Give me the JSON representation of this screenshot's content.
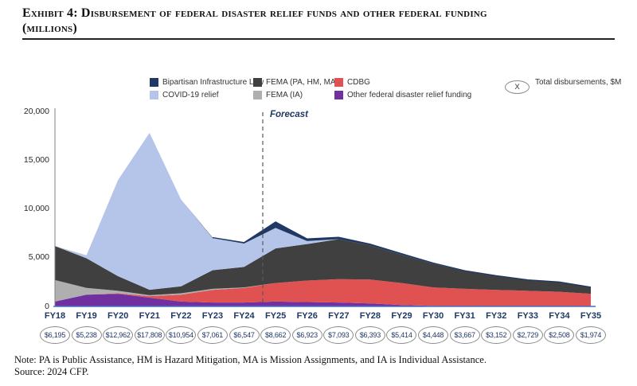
{
  "title_line1": "Exhibit 4: Disbursement of federal disaster relief funds and other federal funding",
  "title_line2": "(millions)",
  "legend": {
    "items": [
      {
        "id": "bil",
        "label": "Bipartisan Infrastructure Law",
        "color": "#1F3864"
      },
      {
        "id": "fema-pa",
        "label": "FEMA (PA, HM, MA)",
        "color": "#404040"
      },
      {
        "id": "cdbg",
        "label": "CDBG",
        "color": "#E05252"
      },
      {
        "id": "covid",
        "label": "COVID-19 relief",
        "color": "#B5C5EA"
      },
      {
        "id": "fema-ia",
        "label": "FEMA (IA)",
        "color": "#AFAFAF"
      },
      {
        "id": "other",
        "label": "Other federal disaster relief funding",
        "color": "#7030A0"
      }
    ],
    "total_marker": {
      "symbol": "X",
      "label": "Total disbursements, $M"
    }
  },
  "colors": {
    "navy_text": "#1F3864",
    "axis_x": "#4472C4",
    "axis_y": "#808080",
    "forecast_line": "#595959",
    "ellipse_border": "#8A8A8A"
  },
  "chart_data": {
    "type": "area",
    "stacked": true,
    "categories": [
      "FY18",
      "FY19",
      "FY20",
      "FY21",
      "FY22",
      "FY23",
      "FY24",
      "FY25",
      "FY26",
      "FY27",
      "FY28",
      "FY29",
      "FY30",
      "FY31",
      "FY32",
      "FY33",
      "FY34",
      "FY35"
    ],
    "series": [
      {
        "id": "other",
        "name": "Other federal disaster relief funding",
        "color": "#7030A0",
        "values": [
          500,
          1200,
          1300,
          900,
          500,
          400,
          400,
          500,
          450,
          400,
          300,
          150,
          50,
          0,
          0,
          0,
          0,
          0
        ]
      },
      {
        "id": "cdbg",
        "name": "CDBG",
        "color": "#E05252",
        "values": [
          0,
          0,
          50,
          150,
          700,
          1300,
          1500,
          1900,
          2200,
          2400,
          2450,
          2250,
          1900,
          1800,
          1700,
          1600,
          1500,
          1300
        ]
      },
      {
        "id": "fema-ia",
        "name": "FEMA (IA)",
        "color": "#AFAFAF",
        "values": [
          2200,
          700,
          250,
          100,
          150,
          100,
          50,
          0,
          0,
          0,
          0,
          0,
          0,
          0,
          0,
          0,
          0,
          0
        ]
      },
      {
        "id": "fema-pa",
        "name": "FEMA (PA, HM, MA)",
        "color": "#404040",
        "values": [
          3495,
          3038,
          1500,
          558,
          704,
          1911,
          2100,
          3550,
          3750,
          4100,
          3500,
          2900,
          2420,
          1830,
          1452,
          1129,
          1008,
          674
        ]
      },
      {
        "id": "covid",
        "name": "COVID-19 relief",
        "color": "#B5C5EA",
        "values": [
          0,
          300,
          9862,
          16100,
          8900,
          3300,
          2400,
          2100,
          300,
          0,
          0,
          0,
          0,
          0,
          0,
          0,
          0,
          0
        ]
      },
      {
        "id": "bil",
        "name": "Bipartisan Infrastructure Law",
        "color": "#1F3864",
        "values": [
          0,
          0,
          0,
          0,
          0,
          50,
          97,
          612,
          223,
          193,
          143,
          114,
          78,
          37,
          0,
          0,
          0,
          0
        ]
      }
    ],
    "totals": [
      6195,
      5238,
      12962,
      17808,
      10954,
      7061,
      6547,
      8662,
      6923,
      7093,
      6393,
      5414,
      4448,
      3667,
      3152,
      2729,
      2508,
      1974
    ],
    "totals_formatted": [
      "$6,195",
      "$5,238",
      "$12,962",
      "$17,808",
      "$10,954",
      "$7,061",
      "$6,547",
      "$8,662",
      "$6,923",
      "$7,093",
      "$6,393",
      "$5,414",
      "$4,448",
      "$3,667",
      "$3,152",
      "$2,729",
      "$2,508",
      "$1,974"
    ],
    "ylim": [
      0,
      20000
    ],
    "y_ticks": [
      0,
      5000,
      10000,
      15000,
      20000
    ],
    "y_tick_labels": [
      "0",
      "5,000",
      "10,000",
      "15,000",
      "20,000"
    ],
    "forecast_label": "Forecast",
    "forecast_divider_between": [
      "FY24",
      "FY25"
    ],
    "legend_position": "top",
    "grid": false
  },
  "note": "Note: PA is Public Assistance, HM is Hazard Mitigation, MA is Mission Assignments, and IA is Individual Assistance.",
  "source": "Source: 2024 CFP."
}
